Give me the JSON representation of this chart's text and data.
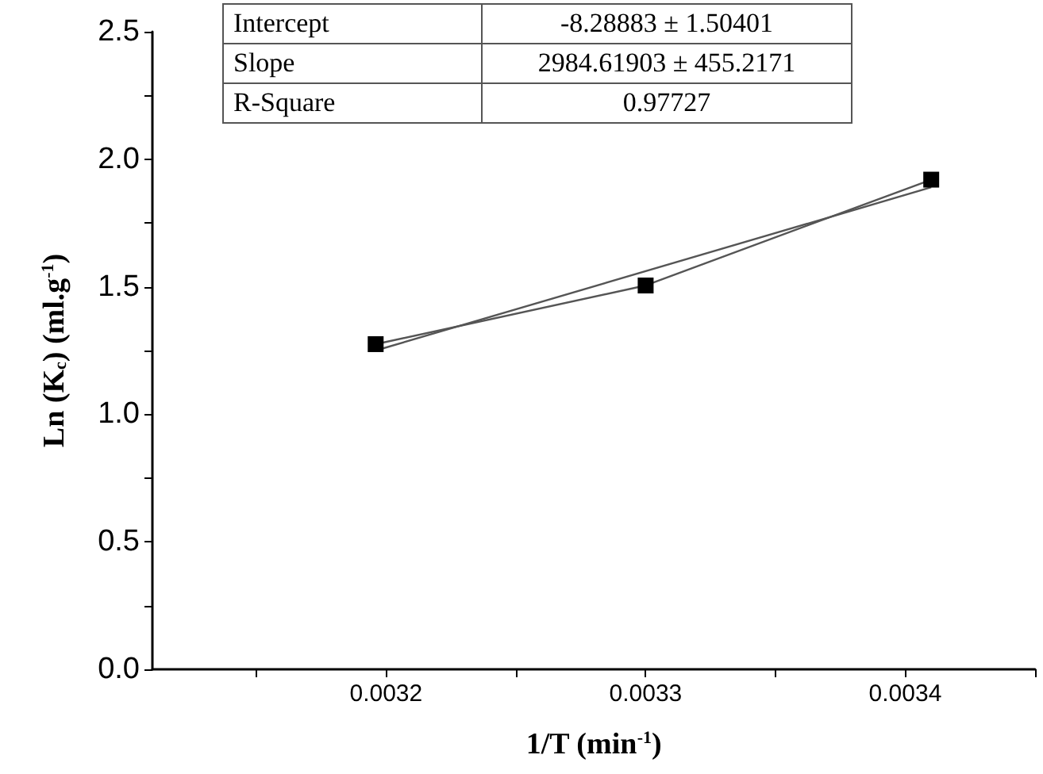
{
  "chart_data": {
    "type": "line",
    "xlabel": "1/T (min$^{-1}$)",
    "ylabel": "Ln (K$_{c}$) (ml.g$^{-1}$)",
    "annotations": [
      "Intercept",
      "-8.28883 ± 1.50401",
      "Slope",
      "2984.61903 ± 455.2171",
      "R-Square",
      "0.97727"
    ],
    "series": [
      {
        "color": "#000000",
        "marker": "square",
        "x": [
          0.003196,
          0.0033,
          0.00341
        ],
        "values": [
          1.275,
          1.505,
          1.92
        ]
      },
      {
        "color": "#555555",
        "marker": "none",
        "x": [
          0.003196,
          0.00341
        ],
        "values": [
          1.25,
          1.89
        ]
      }
    ],
    "xlim": [
      0.00311,
      0.00345
    ],
    "xticks": [
      {
        "value": 0.00315,
        "label": null
      },
      0.0032,
      {
        "value": 0.00325,
        "label": null
      },
      0.0033,
      {
        "value": 0.00335,
        "label": null
      },
      0.0034,
      {
        "value": 0.00345,
        "label": null
      }
    ],
    "ylim": [
      0,
      2.5
    ],
    "yticks": [
      {
        "value": 0,
        "label": "0.0"
      },
      {
        "value": 0.25,
        "label": null
      },
      0.5,
      {
        "value": 0.75,
        "label": null
      },
      {
        "value": 1,
        "label": "1.0"
      },
      {
        "value": 1.25,
        "label": null
      },
      1.5,
      {
        "value": 1.75,
        "label": null
      },
      {
        "value": 2,
        "label": "2.0"
      },
      {
        "value": 2.25,
        "label": null
      },
      2.5
    ],
    "grid": false
  }
}
